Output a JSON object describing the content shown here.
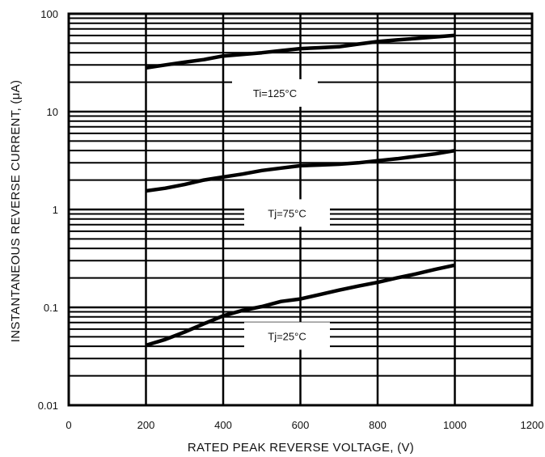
{
  "chart_data": {
    "type": "line",
    "title": "",
    "xlabel": "RATED PEAK REVERSE VOLTAGE, (V)",
    "ylabel": "INSTANTANEOUS REVERSE CURRENT, (μA)",
    "xlim": [
      0,
      1200
    ],
    "ylim": [
      0.01,
      100
    ],
    "yscale": "log",
    "grid": true,
    "xticks": [
      "0",
      "200",
      "400",
      "600",
      "800",
      "1000",
      "1200"
    ],
    "yticks": [
      "0.01",
      "0.1",
      "1",
      "10",
      "100"
    ],
    "series": [
      {
        "name": "Ti=125°C",
        "x": [
          200,
          250,
          300,
          350,
          400,
          450,
          500,
          550,
          600,
          650,
          700,
          750,
          800,
          850,
          900,
          950,
          1000
        ],
        "y": [
          28,
          30,
          32,
          34,
          37,
          38.5,
          40,
          42,
          44,
          45,
          46,
          49,
          52,
          54,
          56,
          58,
          60
        ]
      },
      {
        "name": "Tj=75°C",
        "x": [
          200,
          250,
          300,
          350,
          400,
          450,
          500,
          550,
          600,
          650,
          700,
          750,
          800,
          850,
          900,
          950,
          1000
        ],
        "y": [
          1.55,
          1.65,
          1.8,
          2.0,
          2.15,
          2.3,
          2.5,
          2.65,
          2.8,
          2.85,
          2.9,
          3.0,
          3.15,
          3.3,
          3.5,
          3.7,
          4.0
        ]
      },
      {
        "name": "Tj=25°C",
        "x": [
          200,
          250,
          300,
          350,
          400,
          450,
          500,
          550,
          600,
          650,
          700,
          750,
          800,
          850,
          900,
          950,
          1000
        ],
        "y": [
          0.041,
          0.047,
          0.056,
          0.068,
          0.082,
          0.093,
          0.102,
          0.115,
          0.122,
          0.135,
          0.15,
          0.165,
          0.18,
          0.2,
          0.22,
          0.245,
          0.27
        ]
      }
    ]
  }
}
